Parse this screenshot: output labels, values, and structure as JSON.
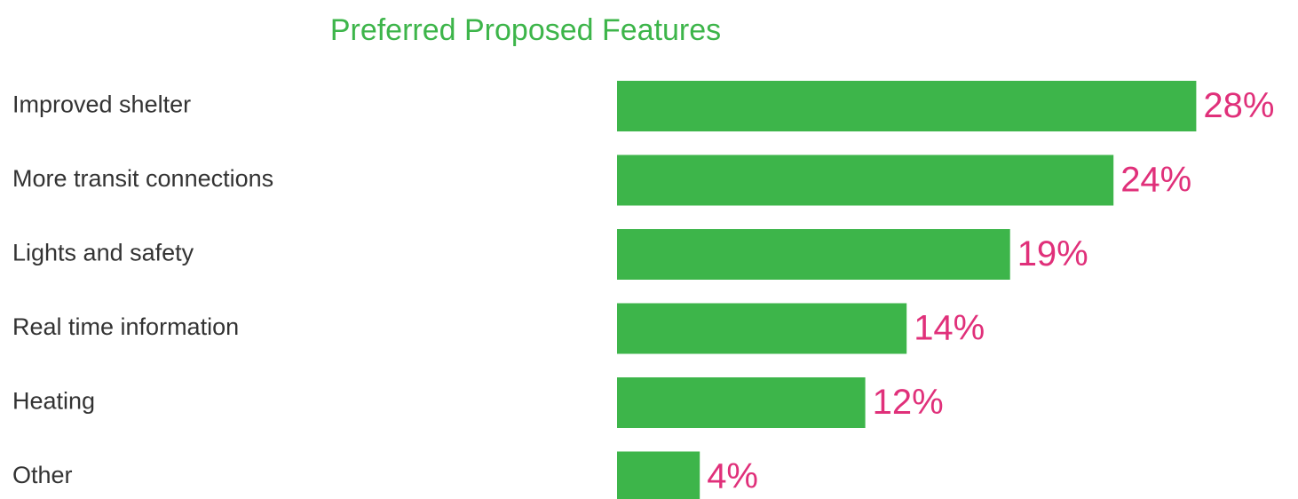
{
  "chart_data": {
    "type": "bar",
    "orientation": "horizontal",
    "title": "Preferred Proposed Features",
    "categories": [
      "Improved shelter",
      "More transit connections",
      "Lights and safety",
      "Real time information",
      "Heating",
      "Other"
    ],
    "values": [
      28,
      24,
      19,
      14,
      12,
      4
    ],
    "value_labels": [
      "28%",
      "24%",
      "19%",
      "14%",
      "12%",
      "4%"
    ],
    "color": "#3db54a"
  }
}
